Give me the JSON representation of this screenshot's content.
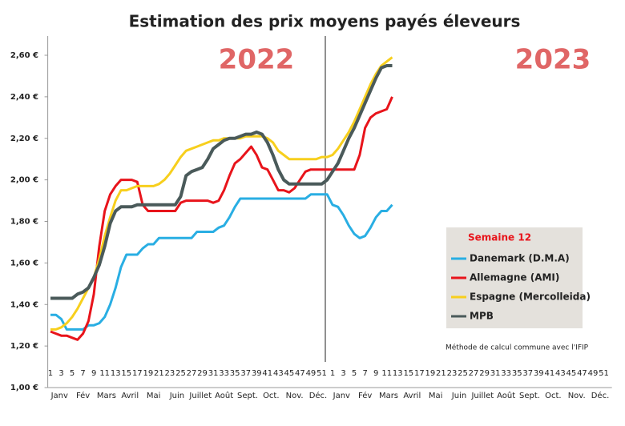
{
  "chart_data": {
    "type": "line",
    "title": "Estimation des prix moyens payés éleveurs",
    "annotations": [
      "2022",
      "2023"
    ],
    "legend_title": "Semaine 12",
    "note": "Méthode de calcul commune avec l'IFIP",
    "categories": [
      "1",
      null,
      "3",
      null,
      "5",
      null,
      "7",
      null,
      "9",
      null,
      "11",
      null,
      "13",
      null,
      "15",
      null,
      "17",
      null,
      "19",
      null,
      "21",
      null,
      "23",
      null,
      "25",
      null,
      "27",
      null,
      "29",
      null,
      "31",
      null,
      "33",
      null,
      "35",
      null,
      "37",
      null,
      "39",
      null,
      "41",
      null,
      "43",
      null,
      "45",
      null,
      "47",
      null,
      "49",
      null,
      "51",
      null,
      "1",
      null,
      "3",
      null,
      "5",
      null,
      "7",
      null,
      "9",
      null,
      "11",
      null,
      "13",
      null,
      "15",
      null,
      "17",
      null,
      "19",
      null,
      "21",
      null,
      "23",
      null,
      "25",
      null,
      "27",
      null,
      "29",
      null,
      "31",
      null,
      "33",
      null,
      "35",
      null,
      "37",
      null,
      "39",
      null,
      "41",
      null,
      "43",
      null,
      "45",
      null,
      "47",
      null,
      "49",
      null,
      "51",
      null
    ],
    "month_labels": [
      "Janv",
      "Fév",
      "Mars",
      "Avril",
      "Mai",
      "Juin",
      "Juillet",
      "Août",
      "Sept.",
      "Oct.",
      "Nov.",
      "Déc.",
      "Janv",
      "Fév",
      "Mars",
      "Avril",
      "Mai",
      "Juin",
      "Juillet",
      "Août",
      "Sept.",
      "Oct.",
      "Nov.",
      "Déc."
    ],
    "ylim": [
      1.0,
      2.6
    ],
    "yticks": [
      {
        "value": 1.0,
        "label": "1,00 €"
      },
      {
        "value": 1.2,
        "label": "1,20 €"
      },
      {
        "value": 1.4,
        "label": "1,40 €"
      },
      {
        "value": 1.6,
        "label": "1,60 €"
      },
      {
        "value": 1.8,
        "label": "1,80 €"
      },
      {
        "value": 2.0,
        "label": "2,00 €"
      },
      {
        "value": 2.2,
        "label": "2,20 €"
      },
      {
        "value": 2.4,
        "label": "2,40 €"
      },
      {
        "value": 2.6,
        "label": "2,60 €"
      }
    ],
    "series": [
      {
        "name": "Danemark (D.M.A)",
        "color": "#29aee3",
        "values": [
          1.35,
          1.35,
          1.33,
          1.28,
          1.28,
          1.28,
          1.28,
          1.3,
          1.3,
          1.31,
          1.34,
          1.4,
          1.48,
          1.58,
          1.64,
          1.64,
          1.64,
          1.67,
          1.69,
          1.69,
          1.72,
          1.72,
          1.72,
          1.72,
          1.72,
          1.72,
          1.72,
          1.75,
          1.75,
          1.75,
          1.75,
          1.77,
          1.78,
          1.82,
          1.87,
          1.91,
          1.91,
          1.91,
          1.91,
          1.91,
          1.91,
          1.91,
          1.91,
          1.91,
          1.91,
          1.91,
          1.91,
          1.91,
          1.93,
          1.93,
          1.93,
          1.93,
          1.88,
          1.87,
          1.83,
          1.78,
          1.74,
          1.72,
          1.73,
          1.77,
          1.82,
          1.85,
          1.85,
          1.88,
          null,
          null,
          null,
          null,
          null,
          null,
          null,
          null,
          null,
          null,
          null,
          null,
          null,
          null,
          null,
          null,
          null,
          null,
          null,
          null,
          null,
          null,
          null,
          null,
          null,
          null,
          null,
          null,
          null,
          null,
          null,
          null,
          null,
          null,
          null,
          null,
          null,
          null,
          null,
          null
        ]
      },
      {
        "name": "Allemagne (AMI)",
        "color": "#e8141b",
        "values": [
          1.27,
          1.26,
          1.25,
          1.25,
          1.24,
          1.23,
          1.26,
          1.32,
          1.45,
          1.68,
          1.85,
          1.93,
          1.97,
          2.0,
          2.0,
          2.0,
          1.99,
          1.88,
          1.85,
          1.85,
          1.85,
          1.85,
          1.85,
          1.85,
          1.89,
          1.9,
          1.9,
          1.9,
          1.9,
          1.9,
          1.89,
          1.9,
          1.95,
          2.02,
          2.08,
          2.1,
          2.13,
          2.16,
          2.12,
          2.06,
          2.05,
          2.0,
          1.95,
          1.95,
          1.94,
          1.96,
          2.0,
          2.04,
          2.05,
          2.05,
          2.05,
          2.05,
          2.05,
          2.05,
          2.05,
          2.05,
          2.05,
          2.12,
          2.25,
          2.3,
          2.32,
          2.33,
          2.34,
          2.4,
          null,
          null,
          null,
          null,
          null,
          null,
          null,
          null,
          null,
          null,
          null,
          null,
          null,
          null,
          null,
          null,
          null,
          null,
          null,
          null,
          null,
          null,
          null,
          null,
          null,
          null,
          null,
          null,
          null,
          null,
          null,
          null,
          null,
          null,
          null,
          null,
          null,
          null,
          null,
          null
        ]
      },
      {
        "name": "Espagne (Mercolleida)",
        "color": "#f7cf1d",
        "values": [
          1.28,
          1.28,
          1.29,
          1.31,
          1.34,
          1.38,
          1.43,
          1.48,
          1.53,
          1.62,
          1.73,
          1.82,
          1.9,
          1.95,
          1.95,
          1.96,
          1.97,
          1.97,
          1.97,
          1.97,
          1.98,
          2.0,
          2.03,
          2.07,
          2.11,
          2.14,
          2.15,
          2.16,
          2.17,
          2.18,
          2.19,
          2.19,
          2.2,
          2.2,
          2.2,
          2.2,
          2.21,
          2.21,
          2.21,
          2.21,
          2.2,
          2.18,
          2.14,
          2.12,
          2.1,
          2.1,
          2.1,
          2.1,
          2.1,
          2.1,
          2.11,
          2.11,
          2.12,
          2.15,
          2.19,
          2.23,
          2.28,
          2.34,
          2.4,
          2.46,
          2.51,
          2.55,
          2.57,
          2.59,
          null,
          null,
          null,
          null,
          null,
          null,
          null,
          null,
          null,
          null,
          null,
          null,
          null,
          null,
          null,
          null,
          null,
          null,
          null,
          null,
          null,
          null,
          null,
          null,
          null,
          null,
          null,
          null,
          null,
          null,
          null,
          null,
          null,
          null,
          null,
          null,
          null,
          null,
          null,
          null
        ]
      },
      {
        "name": "MPB",
        "color": "#4a5a5a",
        "values": [
          1.43,
          1.43,
          1.43,
          1.43,
          1.43,
          1.45,
          1.46,
          1.48,
          1.53,
          1.59,
          1.68,
          1.79,
          1.85,
          1.87,
          1.87,
          1.87,
          1.88,
          1.88,
          1.88,
          1.88,
          1.88,
          1.88,
          1.88,
          1.88,
          1.92,
          2.02,
          2.04,
          2.05,
          2.06,
          2.1,
          2.15,
          2.17,
          2.19,
          2.2,
          2.2,
          2.21,
          2.22,
          2.22,
          2.23,
          2.22,
          2.18,
          2.12,
          2.05,
          2.0,
          1.98,
          1.98,
          1.98,
          1.98,
          1.98,
          1.98,
          1.98,
          2.0,
          2.04,
          2.08,
          2.14,
          2.2,
          2.25,
          2.31,
          2.37,
          2.43,
          2.49,
          2.54,
          2.55,
          2.55,
          null,
          null,
          null,
          null,
          null,
          null,
          null,
          null,
          null,
          null,
          null,
          null,
          null,
          null,
          null,
          null,
          null,
          null,
          null,
          null,
          null,
          null,
          null,
          null,
          null,
          null,
          null,
          null,
          null,
          null,
          null,
          null,
          null,
          null,
          null,
          null,
          null,
          null,
          null,
          null
        ]
      }
    ]
  }
}
